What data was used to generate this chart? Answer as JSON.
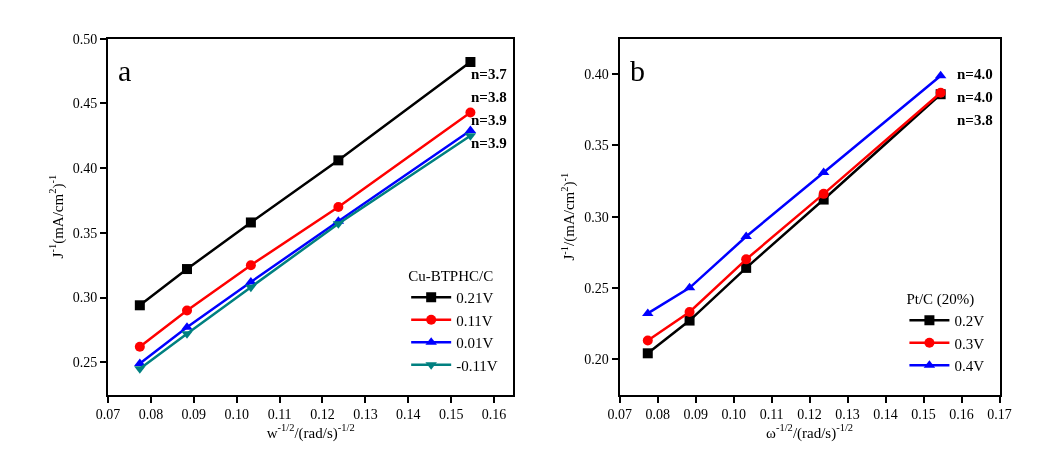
{
  "chart_data": [
    {
      "type": "line",
      "xlabel": "w$^{-1/2}$/(rad/s)$^{-1/2}$",
      "ylabel": "J$^{-1}$(mA/cm$^{2}$)$^{-1}$",
      "legend_title": "Cu-BTPHC/C",
      "x": [
        0.0774,
        0.0884,
        0.1033,
        0.1237,
        0.1545
      ],
      "series": [
        {
          "name": "0.21V",
          "color": "#000000",
          "marker": "square",
          "values": [
            0.294,
            0.322,
            0.358,
            0.406,
            0.482
          ]
        },
        {
          "name": "0.11V",
          "color": "#ff0000",
          "marker": "circle",
          "values": [
            0.262,
            0.29,
            0.325,
            0.37,
            0.443
          ]
        },
        {
          "name": "0.01V",
          "color": "#0000ff",
          "marker": "triangle",
          "values": [
            0.249,
            0.277,
            0.312,
            0.359,
            0.429
          ]
        },
        {
          "name": "-0.11V",
          "color": "#008080",
          "marker": "triangle-down",
          "values": [
            0.245,
            0.272,
            0.308,
            0.357,
            0.425
          ]
        }
      ],
      "xlim": [
        0.07,
        0.1645
      ],
      "xticks": [
        0.07,
        0.08,
        0.09,
        {
          "value": 0.1,
          "label": "0.10"
        },
        0.11,
        0.12,
        0.13,
        0.14,
        0.15,
        0.16
      ],
      "ylim": [
        0.225,
        0.5
      ],
      "yticks": [
        0.25,
        {
          "value": 0.3,
          "label": "0.30"
        },
        0.35,
        {
          "value": 0.4,
          "label": "0.40"
        },
        0.45,
        {
          "value": 0.5,
          "label": "0.50"
        }
      ],
      "legend": "bottom right",
      "line_style": "solid",
      "annotations": [
        "a",
        "n=3.7",
        "n=3.8",
        "n=3.9",
        "n=3.9"
      ]
    },
    {
      "type": "line",
      "xlabel": "ω$^{-1/2}$/(rad/s)$^{-1/2}$",
      "ylabel": "J$^{-1}$/(mA/cm$^{2}$)$^{-1}$",
      "legend_title": "Pt/C (20%)",
      "x": [
        0.0774,
        0.0884,
        0.1033,
        0.1237,
        0.1545
      ],
      "series": [
        {
          "name": "0.2V",
          "color": "#000000",
          "marker": "square",
          "values": [
            0.204,
            0.227,
            0.264,
            0.312,
            0.386
          ]
        },
        {
          "name": "0.3V",
          "color": "#ff0000",
          "marker": "circle",
          "values": [
            0.213,
            0.233,
            0.27,
            0.316,
            0.387
          ]
        },
        {
          "name": "0.4V",
          "color": "#0000ff",
          "marker": "triangle",
          "values": [
            0.232,
            0.25,
            0.286,
            0.331,
            0.399
          ]
        }
      ],
      "xlim": [
        0.07,
        0.17
      ],
      "xticks": [
        0.07,
        0.08,
        0.09,
        {
          "value": 0.1,
          "label": "0.10"
        },
        0.11,
        0.12,
        0.13,
        0.14,
        0.15,
        0.16,
        0.17
      ],
      "ylim": [
        0.175,
        0.425
      ],
      "yticks": [
        {
          "value": 0.2,
          "label": "0.20"
        },
        0.25,
        {
          "value": 0.3,
          "label": "0.30"
        },
        0.35,
        {
          "value": 0.4,
          "label": "0.40"
        }
      ],
      "legend": "bottom right",
      "line_style": "solid",
      "annotations": [
        "b",
        "n=4.0",
        "n=4.0",
        "n=3.8"
      ]
    }
  ]
}
